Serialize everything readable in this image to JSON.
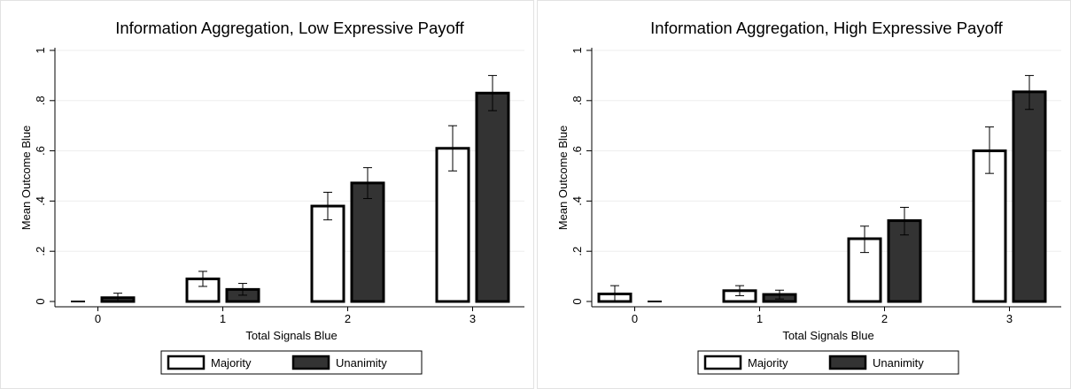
{
  "chart_data": [
    {
      "type": "bar",
      "title": "Information Aggregation, Low Expressive Payoff",
      "xlabel": "Total Signals Blue",
      "ylabel": "Mean Outcome Blue",
      "categories": [
        "0",
        "1",
        "2",
        "3"
      ],
      "yticks": [
        "0",
        ".2",
        ".4",
        ".6",
        ".8",
        "1"
      ],
      "ylim": [
        0,
        1
      ],
      "grid": true,
      "legend_position": "bottom",
      "series": [
        {
          "name": "Majority",
          "color": "#ffffff",
          "values": [
            0.0,
            0.09,
            0.38,
            0.61
          ],
          "err_low": [
            0.0,
            0.06,
            0.325,
            0.52
          ],
          "err_high": [
            0.0,
            0.12,
            0.435,
            0.7
          ]
        },
        {
          "name": "Unanimity",
          "color": "#333333",
          "values": [
            0.015,
            0.048,
            0.472,
            0.83
          ],
          "err_low": [
            0.0,
            0.025,
            0.41,
            0.76
          ],
          "err_high": [
            0.033,
            0.072,
            0.533,
            0.9
          ]
        }
      ]
    },
    {
      "type": "bar",
      "title": "Information Aggregation, High Expressive Payoff",
      "xlabel": "Total Signals Blue",
      "ylabel": "Mean Outcome Blue",
      "categories": [
        "0",
        "1",
        "2",
        "3"
      ],
      "yticks": [
        "0",
        ".2",
        ".4",
        ".6",
        ".8",
        "1"
      ],
      "ylim": [
        0,
        1
      ],
      "grid": true,
      "legend_position": "bottom",
      "series": [
        {
          "name": "Majority",
          "color": "#ffffff",
          "values": [
            0.03,
            0.043,
            0.25,
            0.6
          ],
          "err_low": [
            0.0,
            0.023,
            0.195,
            0.51
          ],
          "err_high": [
            0.063,
            0.063,
            0.3,
            0.695
          ]
        },
        {
          "name": "Unanimity",
          "color": "#333333",
          "values": [
            0.0,
            0.028,
            0.322,
            0.835
          ],
          "err_low": [
            0.0,
            0.01,
            0.265,
            0.765
          ],
          "err_high": [
            0.0,
            0.045,
            0.375,
            0.9
          ]
        }
      ]
    }
  ]
}
